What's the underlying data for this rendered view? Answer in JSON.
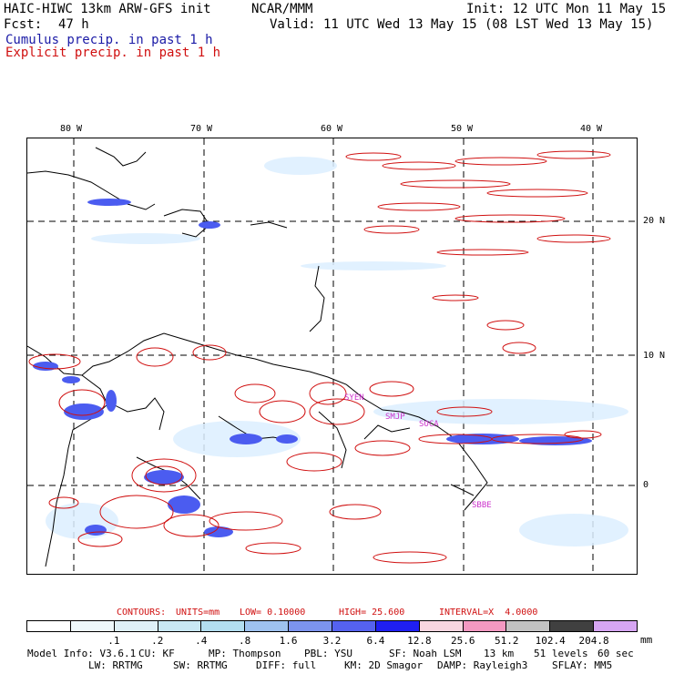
{
  "header": {
    "model": "HAIC-HIWC 13km ARW-GFS init",
    "org": "NCAR/MMM",
    "init": "Init: 12 UTC Mon 11 May 15",
    "fcst_label": "Fcst:",
    "fcst_value": "47 h",
    "valid": "Valid: 11 UTC Wed 13 May 15 (08 LST Wed 13 May 15)",
    "cumulus": "Cumulus precip. in past 1 h",
    "explicit": "Explicit precip. in past 1 h"
  },
  "axes": {
    "lon_labels": [
      "80 W",
      "70 W",
      "60 W",
      "50 W",
      "40 W"
    ],
    "lat_labels": [
      "20 N",
      "10 N",
      "0"
    ]
  },
  "sites": [
    "SYEN",
    "SMJP",
    "SOCA",
    "SBBE"
  ],
  "contours": {
    "label": "CONTOURS:",
    "units": "UNITS=mm",
    "low": "LOW= 0.10000",
    "high": "HIGH= 25.600",
    "interval": "INTERVAL=X  4.0000"
  },
  "legend": {
    "colors": [
      "#ffffff",
      "#eef8fb",
      "#dff0f7",
      "#c9e8f4",
      "#b3def0",
      "#9ec2ef",
      "#7c94ee",
      "#5562ef",
      "#1f1ff2",
      "#f8d6e0",
      "#f499c2",
      "#c2c2c2",
      "#404040",
      "#d7a6f3"
    ],
    "ticks": [
      ".1",
      ".2",
      ".4",
      ".8",
      "1.6",
      "3.2",
      "6.4",
      "12.8",
      "25.6",
      "51.2",
      "102.4",
      "204.8"
    ],
    "units": "mm"
  },
  "footer": {
    "line1": [
      "Model Info: V3.6.1",
      "CU: KF",
      "MP: Thompson",
      "PBL: YSU",
      "SF: Noah LSM",
      "13 km",
      "51 levels",
      "60 sec"
    ],
    "line2": [
      "LW: RRTMG",
      "SW: RRTMG",
      "DIFF: full",
      "KM: 2D Smagor",
      "DAMP: Rayleigh3",
      "SFLAY: MM5"
    ]
  },
  "colors": {
    "cumulus": "#1a1aa6",
    "explicit": "#d01010",
    "site": "#cc33cc"
  }
}
